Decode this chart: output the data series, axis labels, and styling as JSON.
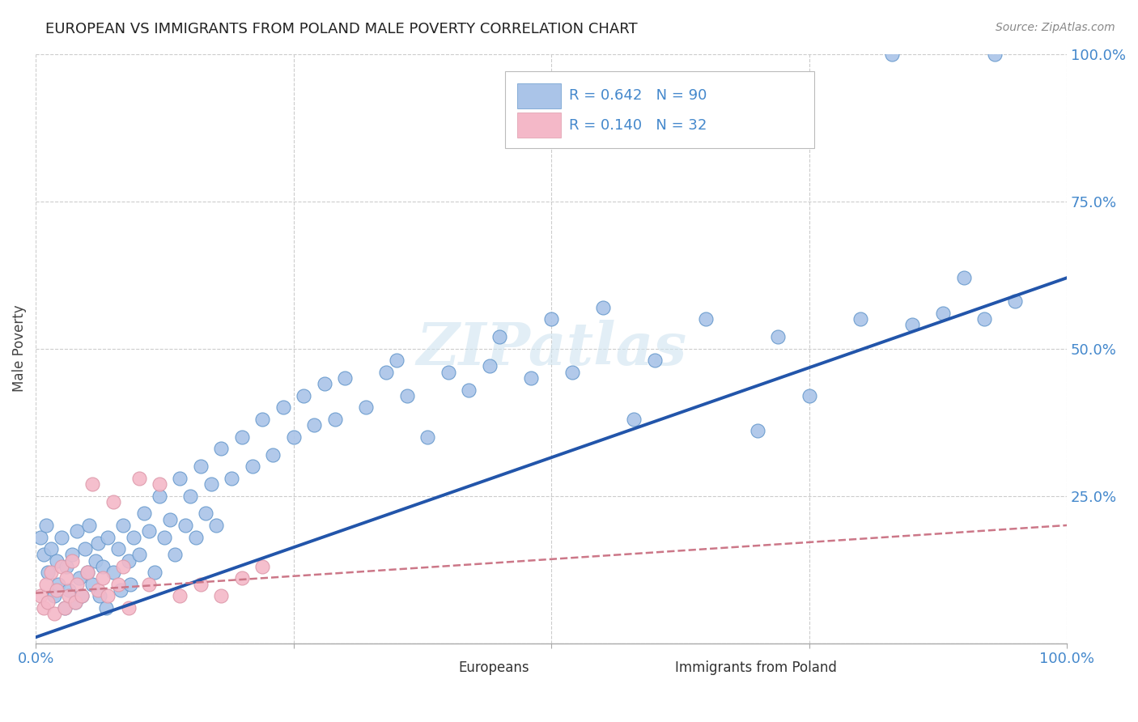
{
  "title": "EUROPEAN VS IMMIGRANTS FROM POLAND MALE POVERTY CORRELATION CHART",
  "source": "Source: ZipAtlas.com",
  "ylabel": "Male Poverty",
  "xlim": [
    0,
    1.0
  ],
  "ylim": [
    0,
    1.0
  ],
  "european_color": "#aac4e8",
  "european_edge": "#6699cc",
  "poland_color": "#f4b8c8",
  "poland_edge": "#dd99aa",
  "trend_blue": "#2255aa",
  "trend_pink": "#cc7788",
  "watermark": "ZIPatlas",
  "legend_label1": "R = 0.642   N = 90",
  "legend_label2": "R = 0.140   N = 32",
  "blue_trend_x": [
    0.0,
    1.0
  ],
  "blue_trend_y": [
    0.01,
    0.62
  ],
  "pink_trend_x": [
    0.0,
    1.0
  ],
  "pink_trend_y": [
    0.085,
    0.2
  ],
  "blue_x": [
    0.005,
    0.008,
    0.01,
    0.012,
    0.015,
    0.018,
    0.02,
    0.022,
    0.025,
    0.028,
    0.03,
    0.032,
    0.035,
    0.038,
    0.04,
    0.042,
    0.045,
    0.048,
    0.05,
    0.052,
    0.055,
    0.058,
    0.06,
    0.062,
    0.065,
    0.068,
    0.07,
    0.075,
    0.08,
    0.082,
    0.085,
    0.09,
    0.092,
    0.095,
    0.1,
    0.105,
    0.11,
    0.115,
    0.12,
    0.125,
    0.13,
    0.135,
    0.14,
    0.145,
    0.15,
    0.155,
    0.16,
    0.165,
    0.17,
    0.175,
    0.18,
    0.19,
    0.2,
    0.21,
    0.22,
    0.23,
    0.24,
    0.25,
    0.26,
    0.27,
    0.28,
    0.29,
    0.3,
    0.32,
    0.34,
    0.35,
    0.36,
    0.38,
    0.4,
    0.42,
    0.44,
    0.45,
    0.48,
    0.5,
    0.52,
    0.55,
    0.58,
    0.6,
    0.65,
    0.7,
    0.72,
    0.75,
    0.8,
    0.83,
    0.85,
    0.88,
    0.9,
    0.92,
    0.93,
    0.95
  ],
  "blue_y": [
    0.18,
    0.15,
    0.2,
    0.12,
    0.16,
    0.08,
    0.14,
    0.1,
    0.18,
    0.06,
    0.13,
    0.09,
    0.15,
    0.07,
    0.19,
    0.11,
    0.08,
    0.16,
    0.12,
    0.2,
    0.1,
    0.14,
    0.17,
    0.08,
    0.13,
    0.06,
    0.18,
    0.12,
    0.16,
    0.09,
    0.2,
    0.14,
    0.1,
    0.18,
    0.15,
    0.22,
    0.19,
    0.12,
    0.25,
    0.18,
    0.21,
    0.15,
    0.28,
    0.2,
    0.25,
    0.18,
    0.3,
    0.22,
    0.27,
    0.2,
    0.33,
    0.28,
    0.35,
    0.3,
    0.38,
    0.32,
    0.4,
    0.35,
    0.42,
    0.37,
    0.44,
    0.38,
    0.45,
    0.4,
    0.46,
    0.48,
    0.42,
    0.35,
    0.46,
    0.43,
    0.47,
    0.52,
    0.45,
    0.55,
    0.46,
    0.57,
    0.38,
    0.48,
    0.55,
    0.36,
    0.52,
    0.42,
    0.55,
    1.0,
    0.54,
    0.56,
    0.62,
    0.55,
    1.0,
    0.58
  ],
  "pink_x": [
    0.005,
    0.008,
    0.01,
    0.012,
    0.015,
    0.018,
    0.02,
    0.025,
    0.028,
    0.03,
    0.032,
    0.035,
    0.038,
    0.04,
    0.045,
    0.05,
    0.055,
    0.06,
    0.065,
    0.07,
    0.075,
    0.08,
    0.085,
    0.09,
    0.1,
    0.11,
    0.12,
    0.14,
    0.16,
    0.18,
    0.2,
    0.22
  ],
  "pink_y": [
    0.08,
    0.06,
    0.1,
    0.07,
    0.12,
    0.05,
    0.09,
    0.13,
    0.06,
    0.11,
    0.08,
    0.14,
    0.07,
    0.1,
    0.08,
    0.12,
    0.27,
    0.09,
    0.11,
    0.08,
    0.24,
    0.1,
    0.13,
    0.06,
    0.28,
    0.1,
    0.27,
    0.08,
    0.1,
    0.08,
    0.11,
    0.13
  ]
}
